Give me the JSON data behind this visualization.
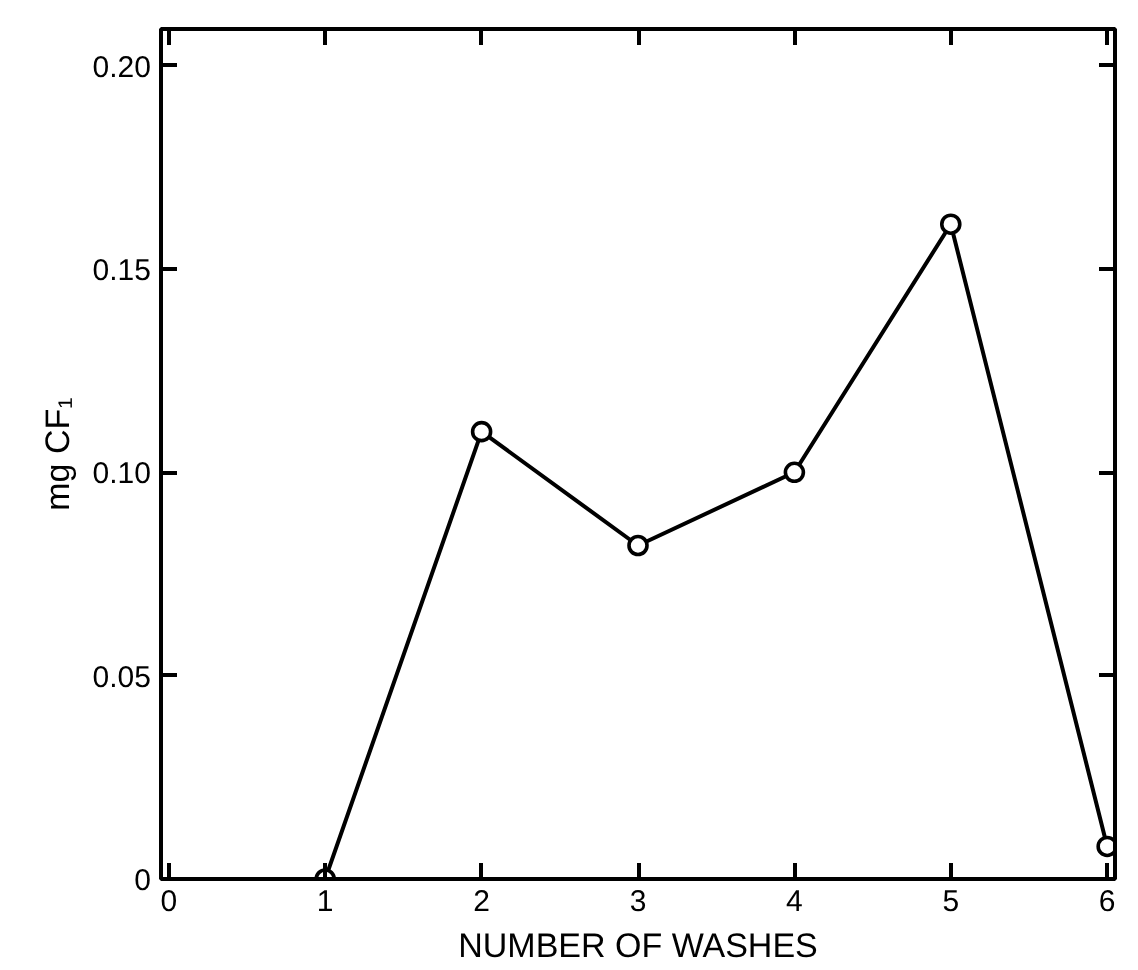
{
  "chart_data": {
    "type": "line",
    "xlabel": "NUMBER OF WASHES",
    "ylabel": "mg CF₁",
    "x": [
      1,
      2,
      3,
      4,
      5,
      6
    ],
    "series": [
      {
        "color": "#000000",
        "values": [
          0.0,
          0.11,
          0.082,
          0.1,
          0.161,
          0.008
        ]
      }
    ],
    "xlim": [
      -0.05,
      6.05
    ],
    "xticks": [
      0,
      1,
      2,
      3,
      4,
      5,
      6
    ],
    "ylim": [
      0,
      0.209
    ],
    "yticks": [
      {
        "value": 0,
        "label": "0"
      },
      {
        "value": 0.05,
        "label": "0.05"
      },
      {
        "value": 0.1,
        "label": "0.10"
      },
      {
        "value": 0.15,
        "label": "0.15"
      },
      {
        "value": 0.2,
        "label": "0.20"
      }
    ],
    "marker": "circle",
    "line_style": "solid"
  }
}
